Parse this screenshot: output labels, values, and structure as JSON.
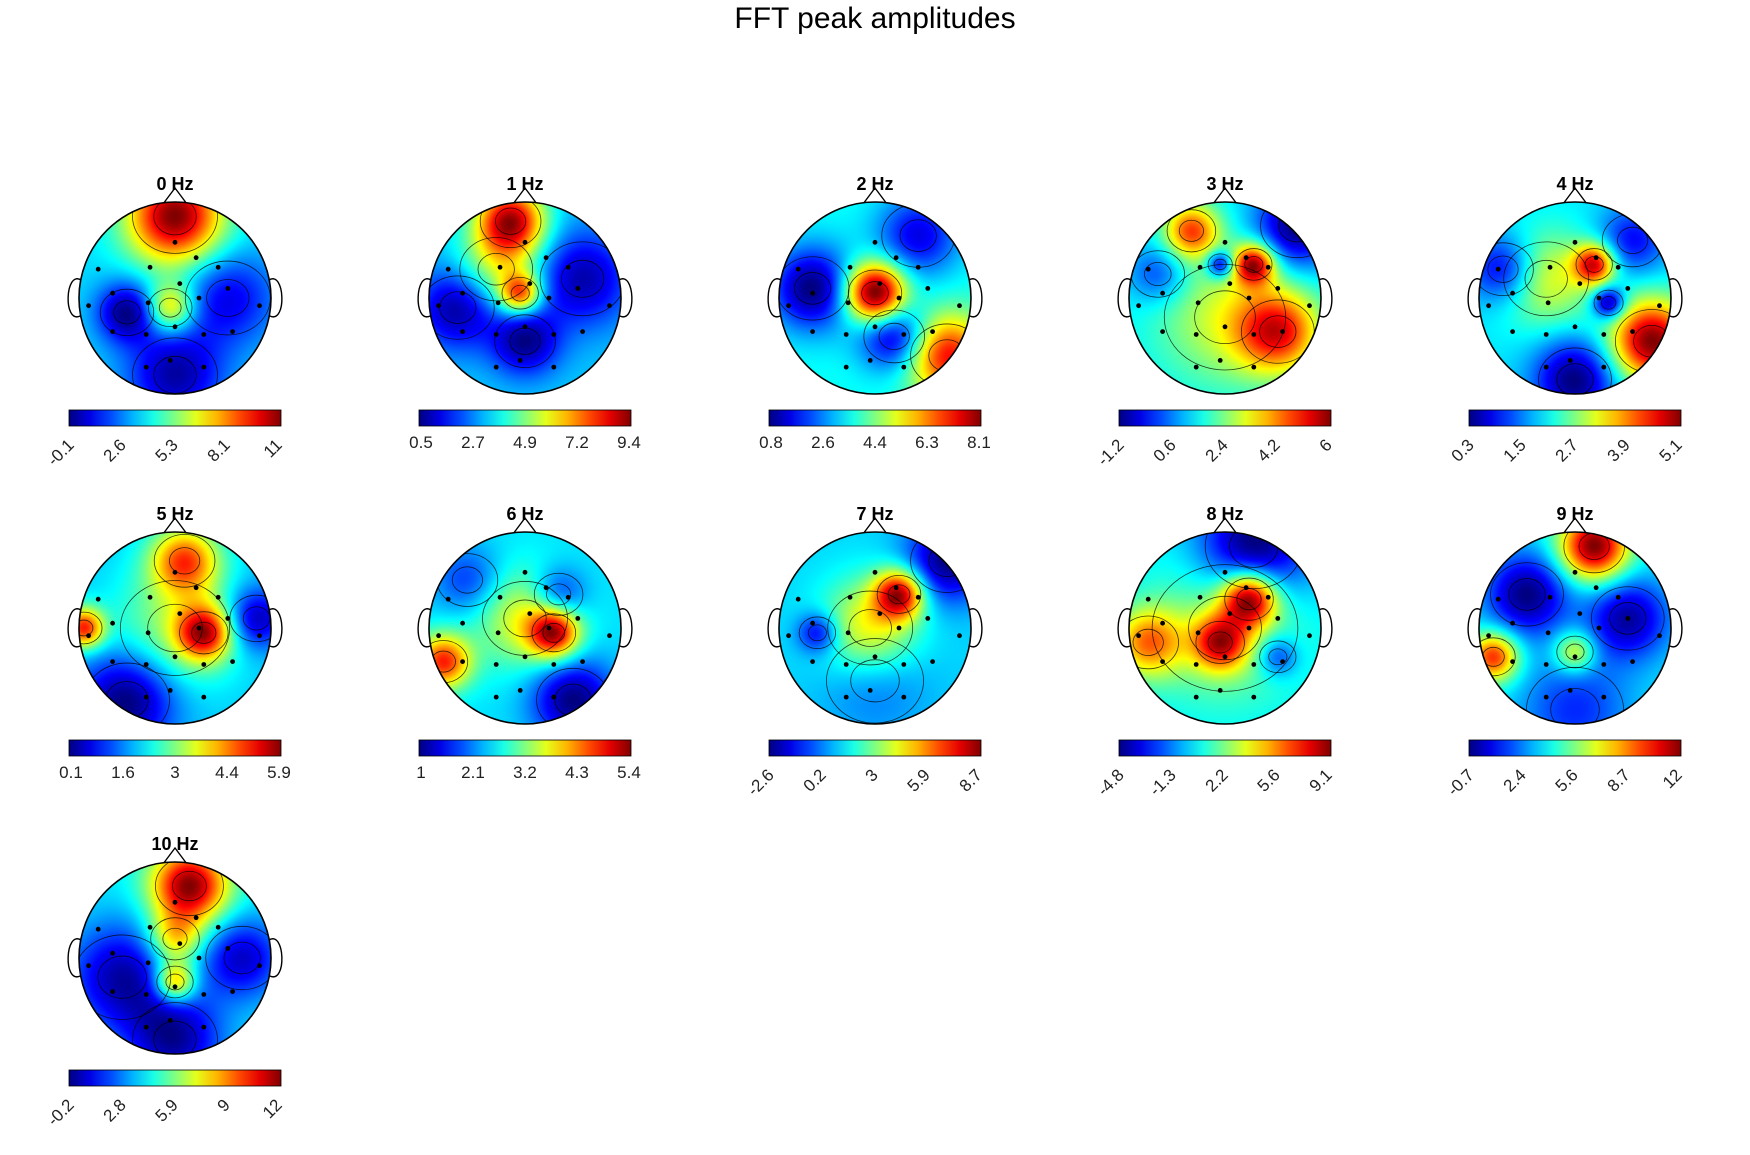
{
  "figure": {
    "title": "FFT peak amplitudes"
  },
  "chart_data": {
    "type": "heatmap",
    "title": "FFT peak amplitudes",
    "colormap": "jet",
    "colormap_stops": [
      "#00008f",
      "#0000ff",
      "#00ffff",
      "#ffff00",
      "#ff0000",
      "#800000"
    ],
    "electrodes": [
      [
        0.0,
        -0.58
      ],
      [
        -0.26,
        -0.32
      ],
      [
        0.22,
        -0.42
      ],
      [
        -0.9,
        0.08
      ],
      [
        -0.65,
        -0.05
      ],
      [
        -0.28,
        0.05
      ],
      [
        0.05,
        -0.15
      ],
      [
        0.25,
        0.0
      ],
      [
        0.55,
        -0.1
      ],
      [
        0.88,
        0.08
      ],
      [
        -0.65,
        0.35
      ],
      [
        -0.3,
        0.38
      ],
      [
        0.0,
        0.3
      ],
      [
        0.3,
        0.38
      ],
      [
        0.6,
        0.35
      ],
      [
        -0.05,
        0.65
      ],
      [
        -0.3,
        0.72
      ],
      [
        0.3,
        0.72
      ],
      [
        -0.8,
        -0.3
      ],
      [
        0.45,
        -0.32
      ]
    ],
    "panels": [
      {
        "label": "0 Hz",
        "ticks": [
          "-0.1",
          "2.6",
          "5.3",
          "8.1",
          "11"
        ],
        "tick_rotation": true,
        "sources": [
          [
            0.0,
            -0.85,
            0.35,
            1.0
          ],
          [
            -0.05,
            0.1,
            0.18,
            0.55
          ],
          [
            -0.5,
            0.15,
            0.22,
            -0.5
          ],
          [
            0.55,
            0.0,
            0.35,
            -0.35
          ],
          [
            0.0,
            0.8,
            0.35,
            -0.45
          ]
        ]
      },
      {
        "label": "1 Hz",
        "ticks": [
          "0.5",
          "2.7",
          "4.9",
          "7.2",
          "9.4"
        ],
        "tick_rotation": false,
        "sources": [
          [
            -0.15,
            -0.8,
            0.25,
            1.0
          ],
          [
            -0.05,
            -0.05,
            0.15,
            0.75
          ],
          [
            -0.3,
            -0.3,
            0.3,
            0.4
          ],
          [
            -0.7,
            0.1,
            0.3,
            -0.5
          ],
          [
            0.6,
            -0.2,
            0.35,
            -0.45
          ],
          [
            0.0,
            0.45,
            0.25,
            -0.5
          ]
        ]
      },
      {
        "label": "2 Hz",
        "ticks": [
          "0.8",
          "2.6",
          "4.4",
          "6.3",
          "8.1"
        ],
        "tick_rotation": false,
        "sources": [
          [
            0.0,
            -0.05,
            0.22,
            1.0
          ],
          [
            0.75,
            0.6,
            0.3,
            0.7
          ],
          [
            -0.65,
            -0.1,
            0.3,
            -0.55
          ],
          [
            0.45,
            -0.65,
            0.3,
            -0.4
          ],
          [
            0.2,
            0.4,
            0.25,
            -0.5
          ]
        ]
      },
      {
        "label": "3 Hz",
        "ticks": [
          "-1.2",
          "0.6",
          "2.4",
          "4.2",
          "6"
        ],
        "tick_rotation": true,
        "sources": [
          [
            0.3,
            -0.35,
            0.15,
            0.9
          ],
          [
            -0.35,
            -0.7,
            0.2,
            0.7
          ],
          [
            0.55,
            0.35,
            0.3,
            0.75
          ],
          [
            -0.05,
            -0.35,
            0.1,
            -0.6
          ],
          [
            0.75,
            -0.75,
            0.3,
            -0.6
          ],
          [
            -0.7,
            -0.25,
            0.22,
            -0.3
          ],
          [
            0.0,
            0.2,
            0.5,
            0.35
          ]
        ]
      },
      {
        "label": "4 Hz",
        "ticks": [
          "0.3",
          "1.5",
          "2.7",
          "3.9",
          "5.1"
        ],
        "tick_rotation": true,
        "sources": [
          [
            0.8,
            0.45,
            0.3,
            1.0
          ],
          [
            0.2,
            -0.35,
            0.15,
            0.8
          ],
          [
            -0.3,
            -0.2,
            0.35,
            0.4
          ],
          [
            0.35,
            0.05,
            0.12,
            -0.6
          ],
          [
            0.0,
            0.85,
            0.3,
            -0.55
          ],
          [
            -0.75,
            -0.3,
            0.25,
            -0.45
          ],
          [
            0.6,
            -0.6,
            0.25,
            -0.35
          ]
        ]
      },
      {
        "label": "5 Hz",
        "ticks": [
          "0.1",
          "1.6",
          "3",
          "4.4",
          "5.9"
        ],
        "tick_rotation": false,
        "sources": [
          [
            0.3,
            0.05,
            0.2,
            0.9
          ],
          [
            0.1,
            -0.7,
            0.25,
            0.8
          ],
          [
            -0.95,
            0.0,
            0.15,
            0.9
          ],
          [
            0.0,
            0.0,
            0.45,
            0.35
          ],
          [
            -0.5,
            0.75,
            0.35,
            -0.6
          ],
          [
            0.85,
            -0.1,
            0.22,
            -0.5
          ]
        ]
      },
      {
        "label": "6 Hz",
        "ticks": [
          "1",
          "2.1",
          "3.2",
          "4.3",
          "5.4"
        ],
        "tick_rotation": false,
        "sources": [
          [
            0.3,
            0.05,
            0.18,
            0.9
          ],
          [
            -0.85,
            0.35,
            0.2,
            0.85
          ],
          [
            0.0,
            -0.1,
            0.35,
            0.45
          ],
          [
            0.5,
            0.75,
            0.3,
            -0.6
          ],
          [
            0.35,
            -0.35,
            0.2,
            -0.4
          ],
          [
            -0.6,
            -0.5,
            0.25,
            -0.3
          ]
        ]
      },
      {
        "label": "7 Hz",
        "ticks": [
          "-2.6",
          "0.2",
          "3",
          "5.9",
          "8.7"
        ],
        "tick_rotation": true,
        "sources": [
          [
            0.25,
            -0.35,
            0.18,
            1.0
          ],
          [
            -0.05,
            0.0,
            0.35,
            0.55
          ],
          [
            0.75,
            -0.7,
            0.3,
            -0.6
          ],
          [
            -0.6,
            0.05,
            0.15,
            -0.45
          ],
          [
            0.0,
            0.55,
            0.4,
            -0.2
          ]
        ]
      },
      {
        "label": "8 Hz",
        "ticks": [
          "-4.8",
          "-1.3",
          "2.2",
          "5.6",
          "9.1"
        ],
        "tick_rotation": true,
        "sources": [
          [
            0.25,
            -0.3,
            0.2,
            1.0
          ],
          [
            -0.05,
            0.15,
            0.2,
            0.75
          ],
          [
            -0.8,
            0.15,
            0.25,
            0.6
          ],
          [
            0.0,
            0.0,
            0.6,
            0.3
          ],
          [
            0.3,
            -0.85,
            0.4,
            -0.65
          ],
          [
            0.55,
            0.3,
            0.15,
            -0.35
          ]
        ]
      },
      {
        "label": "9 Hz",
        "ticks": [
          "-0.7",
          "2.4",
          "5.6",
          "8.7",
          "12"
        ],
        "tick_rotation": true,
        "sources": [
          [
            0.2,
            -0.85,
            0.25,
            1.0
          ],
          [
            -0.85,
            0.3,
            0.18,
            0.75
          ],
          [
            0.0,
            0.25,
            0.15,
            0.45
          ],
          [
            -0.5,
            -0.35,
            0.3,
            -0.55
          ],
          [
            0.55,
            -0.1,
            0.3,
            -0.5
          ],
          [
            0.0,
            0.85,
            0.4,
            -0.3
          ]
        ]
      },
      {
        "label": "10 Hz",
        "ticks": [
          "-0.2",
          "2.8",
          "5.9",
          "9",
          "12"
        ],
        "tick_rotation": true,
        "sources": [
          [
            0.15,
            -0.75,
            0.28,
            1.0
          ],
          [
            0.0,
            0.25,
            0.15,
            0.7
          ],
          [
            0.0,
            -0.2,
            0.2,
            0.5
          ],
          [
            -0.55,
            0.2,
            0.4,
            -0.5
          ],
          [
            0.7,
            0.0,
            0.3,
            -0.45
          ],
          [
            0.0,
            0.85,
            0.35,
            -0.5
          ]
        ]
      }
    ]
  }
}
